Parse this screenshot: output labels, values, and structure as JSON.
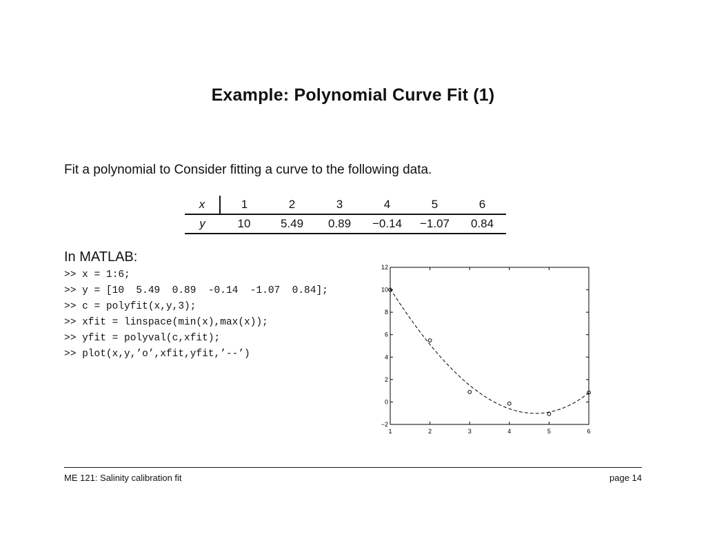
{
  "slide": {
    "title": "Example: Polynomial Curve Fit (1)",
    "intro": "Fit a polynomial to Consider fitting a curve to the following data."
  },
  "data_table": {
    "x_label": "x",
    "y_label": "y",
    "x_values": [
      "1",
      "2",
      "3",
      "4",
      "5",
      "6"
    ],
    "y_values": [
      "10",
      "5.49",
      "0.89",
      "−0.14",
      "−1.07",
      "0.84"
    ]
  },
  "matlab": {
    "heading": "In MATLAB:",
    "lines": [
      ">> x = 1:6;",
      ">> y = [10  5.49  0.89  -0.14  -1.07  0.84];",
      ">> c = polyfit(x,y,3);",
      ">> xfit = linspace(min(x),max(x));",
      ">> yfit = polyval(c,xfit);",
      ">> plot(x,y,’o’,xfit,yfit,’--’)"
    ]
  },
  "chart_data": {
    "type": "scatter",
    "series": [
      {
        "marker": "o",
        "x": [
          1,
          2,
          3,
          4,
          5,
          6
        ],
        "y": [
          10,
          5.49,
          0.89,
          -0.14,
          -1.07,
          0.84
        ]
      },
      {
        "line_style": "dashed",
        "fit": "cubic polynomial (polyfit degree 3)",
        "x_range": [
          1,
          6
        ]
      }
    ],
    "xlim": [
      1,
      6
    ],
    "ylim": [
      -2,
      12
    ],
    "x_ticks": [
      "1",
      "2",
      "3",
      "4",
      "5",
      "6"
    ],
    "y_ticks": [
      "−2",
      "0",
      "2",
      "4",
      "6",
      "8",
      "10",
      "12"
    ],
    "grid": false,
    "colors": {
      "axes": "#000000",
      "line": "#000000"
    }
  },
  "footer": {
    "left": "ME 121: Salinity calibration fit",
    "right": "page 14"
  }
}
